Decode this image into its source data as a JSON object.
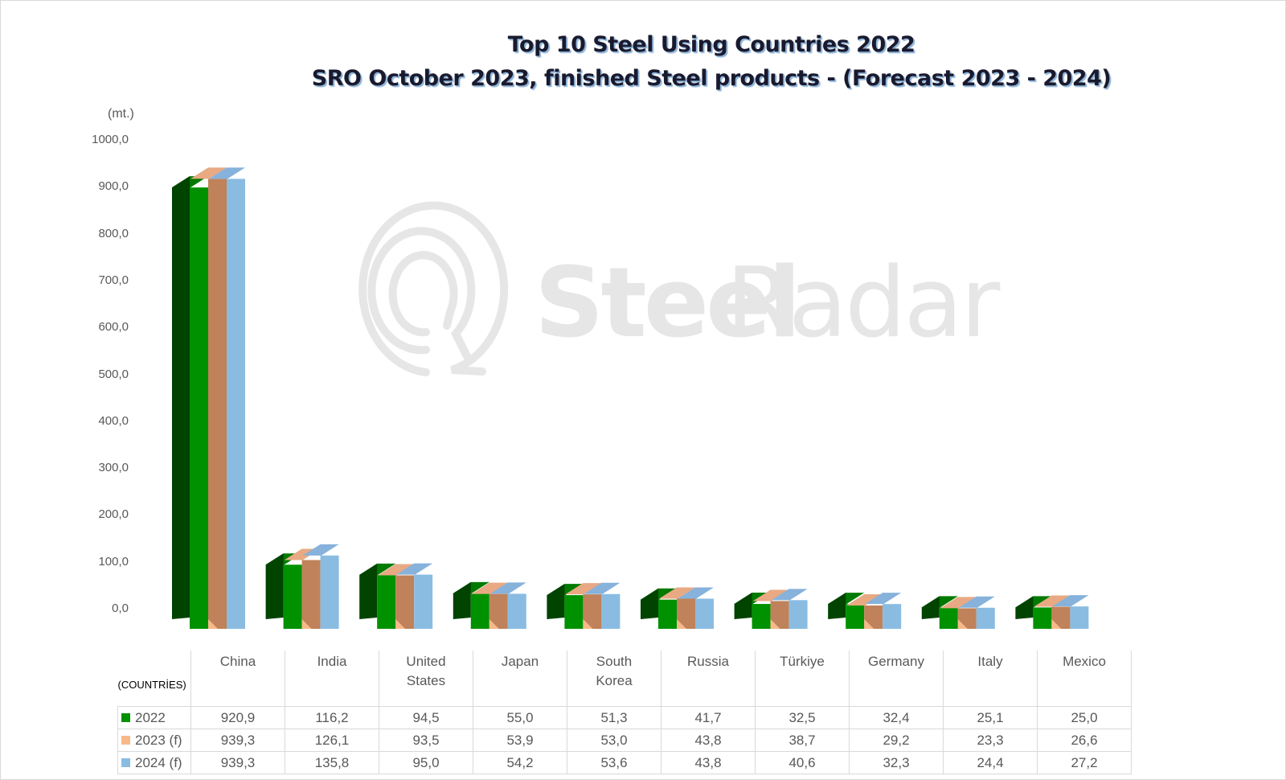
{
  "chart_data": {
    "type": "bar",
    "style": "3d-clustered-column",
    "title": "Top 10 Steel Using Countries 2022",
    "subtitle": "SRO October 2023, finished Steel products - (Forecast 2023 - 2024)",
    "xlabel": "(COUNTRİES)",
    "ylabel": "(mt.)",
    "ylim": [
      0,
      1000
    ],
    "yticks": [
      "0,0",
      "100,0",
      "200,0",
      "300,0",
      "400,0",
      "500,0",
      "600,0",
      "700,0",
      "800,0",
      "900,0",
      "1000,0"
    ],
    "grid": false,
    "legend_position": "data-table",
    "categories": [
      "China",
      "India",
      "United States",
      "Japan",
      "South Korea",
      "Russia",
      "Türkiye",
      "Germany",
      "Italy",
      "Mexico"
    ],
    "series": [
      {
        "name": "2022",
        "color": "#009100",
        "values": [
          920.9,
          116.2,
          94.5,
          55.0,
          51.3,
          41.7,
          32.5,
          32.4,
          25.1,
          25.0
        ]
      },
      {
        "name": "2023 (f)",
        "color": "#f8b98a",
        "values": [
          939.3,
          126.1,
          93.5,
          53.9,
          53.0,
          43.8,
          38.7,
          29.2,
          23.3,
          26.6
        ]
      },
      {
        "name": "2024 (f)",
        "color": "#8abce2",
        "values": [
          939.3,
          135.8,
          95.0,
          54.2,
          53.6,
          43.8,
          40.6,
          32.3,
          24.4,
          27.2
        ]
      }
    ]
  },
  "header": {
    "title": "Top 10 Steel Using Countries 2022",
    "subtitle": "SRO October 2023, finished Steel products - (Forecast 2023 - 2024)"
  },
  "axis": {
    "unit": "(mt.)",
    "ticks": [
      "1000,0",
      "900,0",
      "800,0",
      "700,0",
      "600,0",
      "500,0",
      "400,0",
      "300,0",
      "200,0",
      "100,0",
      "0,0"
    ]
  },
  "table": {
    "corner": "(COUNTRİES)",
    "columns": [
      {
        "line1": "China",
        "line2": ""
      },
      {
        "line1": "India",
        "line2": ""
      },
      {
        "line1": "United",
        "line2": "States"
      },
      {
        "line1": "Japan",
        "line2": ""
      },
      {
        "line1": "South",
        "line2": "Korea"
      },
      {
        "line1": "Russia",
        "line2": ""
      },
      {
        "line1": "Türkiye",
        "line2": ""
      },
      {
        "line1": "Germany",
        "line2": ""
      },
      {
        "line1": "Italy",
        "line2": ""
      },
      {
        "line1": "Mexico",
        "line2": ""
      }
    ],
    "rows": [
      {
        "label": "2022",
        "color": "#009100",
        "values": [
          "920,9",
          "116,2",
          "94,5",
          "55,0",
          "51,3",
          "41,7",
          "32,5",
          "32,4",
          "25,1",
          "25,0"
        ]
      },
      {
        "label": "2023 (f)",
        "color": "#f8b98a",
        "values": [
          "939,3",
          "126,1",
          "93,5",
          "53,9",
          "53,0",
          "43,8",
          "38,7",
          "29,2",
          "23,3",
          "26,6"
        ]
      },
      {
        "label": "2024 (f)",
        "color": "#8abce2",
        "values": [
          "939,3",
          "135,8",
          "95,0",
          "54,2",
          "53,6",
          "43,8",
          "40,6",
          "32,3",
          "24,4",
          "27,2"
        ]
      }
    ]
  },
  "watermark": {
    "text_bold": "Steel",
    "text_light": "Radar",
    "icon": "radar-q-logo-icon"
  }
}
